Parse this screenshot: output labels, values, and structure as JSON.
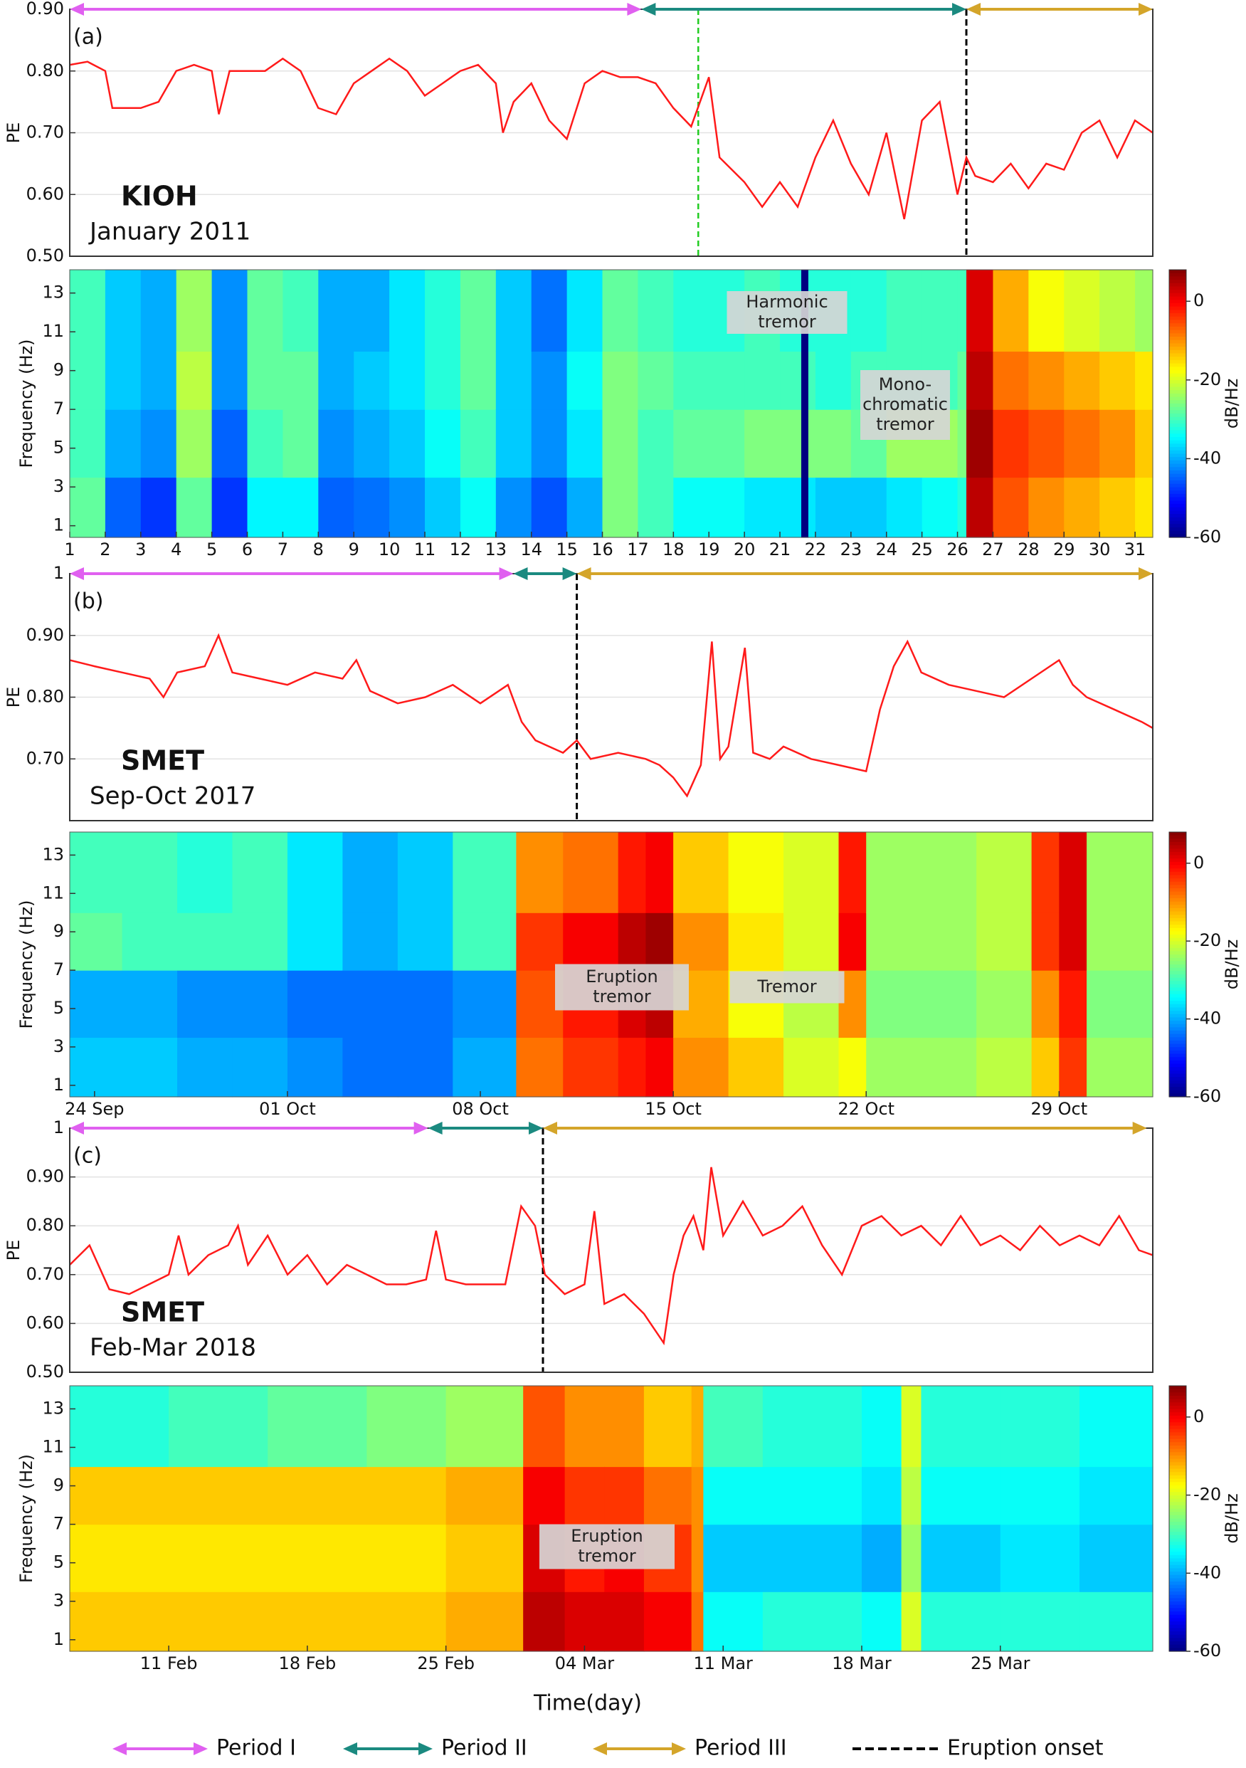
{
  "figure": {
    "xlabel": "Time(day)",
    "legend": [
      {
        "name": "Period I",
        "color": "#e060f0"
      },
      {
        "name": "Period II",
        "color": "#1b8a80"
      },
      {
        "name": "Period III",
        "color": "#d4a52a"
      },
      {
        "name": "Eruption onset",
        "color": "#000000",
        "dash": true
      }
    ]
  },
  "chart_data": [
    {
      "type": "line",
      "panel_label": "(a)",
      "station": "KIOH",
      "period": "January 2011",
      "ylabel": "PE",
      "grid": true,
      "xlim": [
        1,
        31.5
      ],
      "ylim": [
        0.5,
        0.9
      ],
      "yticks": [
        {
          "value": 0.5,
          "label": "0.50"
        },
        {
          "value": 0.6,
          "label": "0.60"
        },
        {
          "value": 0.7,
          "label": "0.70"
        },
        {
          "value": 0.8,
          "label": "0.80"
        },
        {
          "value": 0.9,
          "label": "0.90"
        }
      ],
      "periods": [
        [
          1,
          17.1
        ],
        [
          17.1,
          26.25
        ],
        [
          26.25,
          31.5
        ]
      ],
      "onset": 26.25,
      "markers": [
        {
          "x": 18.7,
          "color": "#22cc22"
        }
      ],
      "x": [
        1,
        1.5,
        2,
        2.2,
        3,
        3.5,
        4,
        4.5,
        5,
        5.2,
        5.5,
        6,
        6.5,
        7,
        7.5,
        8,
        8.5,
        9,
        9.5,
        10,
        10.5,
        11,
        11.5,
        12,
        12.5,
        13,
        13.2,
        13.5,
        14,
        14.5,
        15,
        15.5,
        16,
        16.5,
        17,
        17.5,
        18,
        18.5,
        19,
        19.3,
        20,
        20.5,
        21,
        21.5,
        22,
        22.5,
        23,
        23.5,
        24,
        24.5,
        25,
        25.5,
        26,
        26.25,
        26.5,
        27,
        27.5,
        28,
        28.5,
        29,
        29.5,
        30,
        30.5,
        31,
        31.5
      ],
      "series": [
        {
          "color": "#ff1a1a",
          "values": [
            0.81,
            0.815,
            0.8,
            0.74,
            0.74,
            0.75,
            0.8,
            0.81,
            0.8,
            0.73,
            0.8,
            0.8,
            0.8,
            0.82,
            0.8,
            0.74,
            0.73,
            0.78,
            0.8,
            0.82,
            0.8,
            0.76,
            0.78,
            0.8,
            0.81,
            0.78,
            0.7,
            0.75,
            0.78,
            0.72,
            0.69,
            0.78,
            0.8,
            0.79,
            0.79,
            0.78,
            0.74,
            0.71,
            0.79,
            0.66,
            0.62,
            0.58,
            0.62,
            0.58,
            0.66,
            0.72,
            0.65,
            0.6,
            0.7,
            0.56,
            0.72,
            0.75,
            0.6,
            0.66,
            0.63,
            0.62,
            0.65,
            0.61,
            0.65,
            0.64,
            0.7,
            0.72,
            0.66,
            0.72,
            0.7
          ]
        }
      ]
    },
    {
      "type": "heatmap",
      "ylabel": "Frequency (Hz)",
      "colormap": "jet",
      "clabel": "dB/Hz",
      "clim": [
        -60,
        8
      ],
      "cticks": [
        0,
        -20,
        -40,
        -60
      ],
      "xlim": [
        1,
        31.5
      ],
      "ylim": [
        0.4,
        14.2
      ],
      "yticks": [
        1,
        3,
        5,
        7,
        9,
        11,
        13
      ],
      "xticks": [
        1,
        2,
        3,
        4,
        5,
        6,
        7,
        8,
        9,
        10,
        11,
        12,
        13,
        14,
        15,
        16,
        17,
        18,
        19,
        20,
        21,
        22,
        23,
        24,
        25,
        26,
        27,
        28,
        29,
        30,
        31
      ],
      "annotations": [
        [
          "Harmonic",
          "tremor"
        ],
        [
          "Mono-",
          "chromatic",
          "tremor"
        ]
      ],
      "x_edges": [
        1,
        2,
        3,
        4,
        5,
        6,
        7,
        8,
        9,
        10,
        11,
        12,
        13,
        14,
        15,
        16,
        17,
        18,
        19,
        20,
        21,
        21.6,
        21.8,
        22,
        23,
        24,
        25,
        26,
        26.25,
        27,
        28,
        29,
        30,
        31,
        31.5
      ],
      "y_edges": [
        0.4,
        3.5,
        7,
        10,
        14.2
      ],
      "z": [
        [
          -28,
          -30,
          -30,
          -30
        ],
        [
          -45,
          -40,
          -38,
          -38
        ],
        [
          -48,
          -42,
          -40,
          -40
        ],
        [
          -28,
          -24,
          -22,
          -24
        ],
        [
          -48,
          -45,
          -42,
          -42
        ],
        [
          -35,
          -30,
          -28,
          -28
        ],
        [
          -35,
          -28,
          -28,
          -30
        ],
        [
          -45,
          -42,
          -40,
          -40
        ],
        [
          -44,
          -40,
          -38,
          -40
        ],
        [
          -42,
          -38,
          -36,
          -36
        ],
        [
          -38,
          -34,
          -32,
          -32
        ],
        [
          -34,
          -30,
          -28,
          -28
        ],
        [
          -42,
          -38,
          -38,
          -38
        ],
        [
          -46,
          -42,
          -42,
          -44
        ],
        [
          -40,
          -36,
          -34,
          -36
        ],
        [
          -26,
          -26,
          -26,
          -28
        ],
        [
          -30,
          -30,
          -28,
          -30
        ],
        [
          -34,
          -28,
          -30,
          -32
        ],
        [
          -34,
          -28,
          -30,
          -32
        ],
        [
          -36,
          -26,
          -30,
          -30
        ],
        [
          -36,
          -26,
          -30,
          -32
        ],
        [
          -60,
          -60,
          -60,
          -60
        ],
        [
          -36,
          -26,
          -30,
          -32
        ],
        [
          -38,
          -26,
          -32,
          -32
        ],
        [
          -38,
          -28,
          -30,
          -32
        ],
        [
          -36,
          -24,
          -30,
          -30
        ],
        [
          -34,
          -24,
          -30,
          -30
        ],
        [
          -32,
          -26,
          -28,
          -30
        ],
        [
          4,
          6,
          4,
          2
        ],
        [
          -6,
          -4,
          -8,
          -12
        ],
        [
          -10,
          -6,
          -10,
          -18
        ],
        [
          -12,
          -8,
          -12,
          -20
        ],
        [
          -14,
          -10,
          -14,
          -22
        ],
        [
          -16,
          -14,
          -16,
          -24
        ]
      ]
    },
    {
      "type": "line",
      "panel_label": "(b)",
      "station": "SMET",
      "period": "Sep-Oct 2017",
      "ylabel": "PE",
      "grid": true,
      "xlim": [
        -0.9,
        38.4
      ],
      "ylim": [
        0.6,
        1
      ],
      "yticks": [
        {
          "value": 0.7,
          "label": "0.70"
        },
        {
          "value": 0.8,
          "label": "0.80"
        },
        {
          "value": 0.9,
          "label": "0.90"
        },
        1
      ],
      "periods": [
        [
          -0.9,
          15.2
        ],
        [
          15.2,
          17.5
        ],
        [
          17.5,
          38.4
        ]
      ],
      "onset": 17.5,
      "x": [
        -0.9,
        0,
        1,
        2,
        2.5,
        3,
        4,
        4.5,
        5,
        6,
        7,
        8,
        9,
        9.5,
        10,
        11,
        12,
        13,
        14,
        15,
        15.5,
        16,
        17,
        17.5,
        18,
        19,
        20,
        20.5,
        21,
        21.5,
        22,
        22.4,
        22.7,
        23,
        23.6,
        23.9,
        24.5,
        25,
        26,
        27,
        28,
        28.5,
        29,
        29.5,
        30,
        31,
        32,
        33,
        34,
        35,
        35.5,
        36,
        37,
        38,
        38.4
      ],
      "series": [
        {
          "color": "#ff1a1a",
          "values": [
            0.86,
            0.85,
            0.84,
            0.83,
            0.8,
            0.84,
            0.85,
            0.9,
            0.84,
            0.83,
            0.82,
            0.84,
            0.83,
            0.86,
            0.81,
            0.79,
            0.8,
            0.82,
            0.79,
            0.82,
            0.76,
            0.73,
            0.71,
            0.73,
            0.7,
            0.71,
            0.7,
            0.69,
            0.67,
            0.64,
            0.69,
            0.89,
            0.7,
            0.72,
            0.88,
            0.71,
            0.7,
            0.72,
            0.7,
            0.69,
            0.68,
            0.78,
            0.85,
            0.89,
            0.84,
            0.82,
            0.81,
            0.8,
            0.83,
            0.86,
            0.82,
            0.8,
            0.78,
            0.76,
            0.75
          ]
        }
      ]
    },
    {
      "type": "heatmap",
      "ylabel": "Frequency (Hz)",
      "colormap": "jet",
      "clabel": "dB/Hz",
      "clim": [
        -60,
        8
      ],
      "cticks": [
        0,
        -20,
        -40,
        -60
      ],
      "xlim": [
        -0.9,
        38.4
      ],
      "ylim": [
        0.4,
        14.2
      ],
      "yticks": [
        1,
        3,
        5,
        7,
        9,
        11,
        13
      ],
      "xticks": [
        {
          "value": 0,
          "label": "24 Sep"
        },
        {
          "value": 7,
          "label": "01 Oct"
        },
        {
          "value": 14,
          "label": "08 Oct"
        },
        {
          "value": 21,
          "label": "15 Oct"
        },
        {
          "value": 28,
          "label": "22 Oct"
        },
        {
          "value": 35,
          "label": "29 Oct"
        }
      ],
      "annotations": [
        [
          "Eruption",
          "tremor"
        ],
        [
          "Tremor"
        ]
      ],
      "x_edges": [
        -0.9,
        1,
        3,
        5,
        7,
        9,
        11,
        13,
        15.3,
        17,
        19,
        20,
        21,
        23,
        25,
        27,
        28,
        30,
        32,
        34,
        35,
        36,
        38.4
      ],
      "y_edges": [
        0.4,
        3.5,
        7,
        10,
        14.2
      ],
      "z": [
        [
          -38,
          -40,
          -28,
          -30
        ],
        [
          -38,
          -40,
          -30,
          -30
        ],
        [
          -40,
          -42,
          -30,
          -32
        ],
        [
          -40,
          -42,
          -30,
          -30
        ],
        [
          -42,
          -44,
          -36,
          -36
        ],
        [
          -44,
          -44,
          -40,
          -40
        ],
        [
          -44,
          -44,
          -38,
          -38
        ],
        [
          -40,
          -42,
          -30,
          -30
        ],
        [
          -8,
          -6,
          -4,
          -10
        ],
        [
          -4,
          -2,
          0,
          -8
        ],
        [
          -2,
          2,
          4,
          -2
        ],
        [
          0,
          4,
          6,
          0
        ],
        [
          -10,
          -12,
          -10,
          -14
        ],
        [
          -14,
          -18,
          -16,
          -18
        ],
        [
          -20,
          -22,
          -20,
          -20
        ],
        [
          -18,
          -10,
          0,
          -2
        ],
        [
          -24,
          -26,
          -24,
          -24
        ],
        [
          -24,
          -26,
          -24,
          -24
        ],
        [
          -22,
          -24,
          -22,
          -22
        ],
        [
          -14,
          -10,
          -4,
          -4
        ],
        [
          -4,
          -2,
          2,
          2
        ],
        [
          -24,
          -26,
          -24,
          -24
        ]
      ]
    },
    {
      "type": "line",
      "panel_label": "(c)",
      "station": "SMET",
      "period": "Feb-Mar 2018",
      "ylabel": "PE",
      "grid": true,
      "xlim": [
        -5,
        49.7
      ],
      "ylim": [
        0.5,
        1
      ],
      "yticks": [
        {
          "value": 0.5,
          "label": "0.50"
        },
        {
          "value": 0.6,
          "label": "0.60"
        },
        {
          "value": 0.7,
          "label": "0.70"
        },
        {
          "value": 0.8,
          "label": "0.80"
        },
        {
          "value": 0.9,
          "label": "0.90"
        },
        1
      ],
      "periods": [
        [
          -5,
          13.1
        ],
        [
          13.1,
          18.9
        ],
        [
          18.9,
          49.4
        ]
      ],
      "onset": 18.9,
      "x": [
        -5,
        -4,
        -3,
        -2,
        -1,
        0,
        0.5,
        1,
        2,
        3,
        3.5,
        4,
        5,
        6,
        7,
        8,
        9,
        10,
        11,
        12,
        13,
        13.5,
        14,
        15,
        16,
        17,
        17.8,
        18.5,
        19,
        20,
        21,
        21.5,
        22,
        23,
        24,
        25,
        25.5,
        26,
        26.5,
        27,
        27.4,
        28,
        29,
        30,
        31,
        32,
        33,
        34,
        35,
        36,
        37,
        38,
        39,
        40,
        41,
        42,
        43,
        44,
        45,
        46,
        47,
        48,
        49,
        49.7
      ],
      "series": [
        {
          "color": "#ff1a1a",
          "values": [
            0.72,
            0.76,
            0.67,
            0.66,
            0.68,
            0.7,
            0.78,
            0.7,
            0.74,
            0.76,
            0.8,
            0.72,
            0.78,
            0.7,
            0.74,
            0.68,
            0.72,
            0.7,
            0.68,
            0.68,
            0.69,
            0.79,
            0.69,
            0.68,
            0.68,
            0.68,
            0.84,
            0.8,
            0.7,
            0.66,
            0.68,
            0.83,
            0.64,
            0.66,
            0.62,
            0.56,
            0.7,
            0.78,
            0.82,
            0.75,
            0.92,
            0.78,
            0.85,
            0.78,
            0.8,
            0.84,
            0.76,
            0.7,
            0.8,
            0.82,
            0.78,
            0.8,
            0.76,
            0.82,
            0.76,
            0.78,
            0.75,
            0.8,
            0.76,
            0.78,
            0.76,
            0.82,
            0.75,
            0.74
          ]
        }
      ]
    },
    {
      "type": "heatmap",
      "ylabel": "Frequency (Hz)",
      "colormap": "jet",
      "clabel": "dB/Hz",
      "clim": [
        -60,
        8
      ],
      "cticks": [
        0,
        -20,
        -40,
        -60
      ],
      "xlim": [
        -5,
        49.7
      ],
      "ylim": [
        0.4,
        14.2
      ],
      "yticks": [
        1,
        3,
        5,
        7,
        9,
        11,
        13
      ],
      "xticks": [
        {
          "value": 0,
          "label": "11 Feb"
        },
        {
          "value": 7,
          "label": "18 Feb"
        },
        {
          "value": 14,
          "label": "25 Feb"
        },
        {
          "value": 21,
          "label": "04 Mar"
        },
        {
          "value": 28,
          "label": "11 Mar"
        },
        {
          "value": 35,
          "label": "18 Mar"
        },
        {
          "value": 42,
          "label": "25 Mar"
        }
      ],
      "annotations": [
        [
          "Eruption",
          "tremor"
        ]
      ],
      "x_edges": [
        -5,
        0,
        5,
        10,
        14,
        17.9,
        20,
        22,
        24,
        26.4,
        27,
        30,
        35,
        37,
        38,
        42,
        46,
        49.7
      ],
      "y_edges": [
        0.4,
        3.5,
        7,
        10,
        14.2
      ],
      "z": [
        [
          -14,
          -16,
          -14,
          -32
        ],
        [
          -14,
          -16,
          -14,
          -30
        ],
        [
          -14,
          -16,
          -14,
          -28
        ],
        [
          -14,
          -16,
          -14,
          -26
        ],
        [
          -12,
          -14,
          -12,
          -24
        ],
        [
          4,
          2,
          0,
          -6
        ],
        [
          2,
          -2,
          -4,
          -10
        ],
        [
          2,
          0,
          -4,
          -10
        ],
        [
          0,
          -4,
          -8,
          -14
        ],
        [
          -8,
          -10,
          -10,
          -12
        ],
        [
          -34,
          -38,
          -34,
          -30
        ],
        [
          -32,
          -38,
          -34,
          -32
        ],
        [
          -34,
          -40,
          -36,
          -34
        ],
        [
          -20,
          -24,
          -22,
          -20
        ],
        [
          -32,
          -38,
          -34,
          -32
        ],
        [
          -32,
          -36,
          -34,
          -32
        ],
        [
          -32,
          -38,
          -36,
          -34
        ]
      ]
    }
  ]
}
